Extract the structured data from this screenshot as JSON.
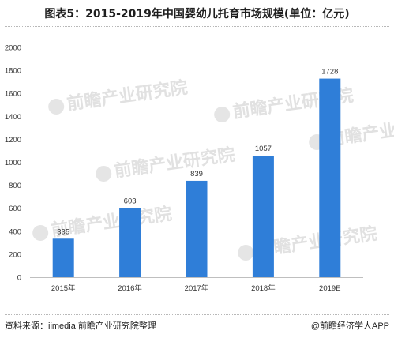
{
  "title": "图表5：2015-2019年中国婴幼儿托育市场规模(单位：亿元)",
  "footer": {
    "source": "资料来源：iimedia 前瞻产业研究院整理",
    "brand": "@前瞻经济学人APP"
  },
  "watermark": "前瞻产业研究院",
  "colors": {
    "bar": "#2f7ed8",
    "axis": "#bfbfbf",
    "text": "#333333"
  },
  "chart_data": {
    "type": "bar",
    "categories": [
      "2015年",
      "2016年",
      "2017年",
      "2018年",
      "2019E"
    ],
    "values": [
      335,
      603,
      839,
      1057,
      1728
    ],
    "ylim": [
      0,
      2000
    ],
    "yticks": [
      0,
      200,
      400,
      600,
      800,
      1000,
      1200,
      1400,
      1600,
      1800,
      2000
    ],
    "grid": false,
    "data_labels": true
  }
}
